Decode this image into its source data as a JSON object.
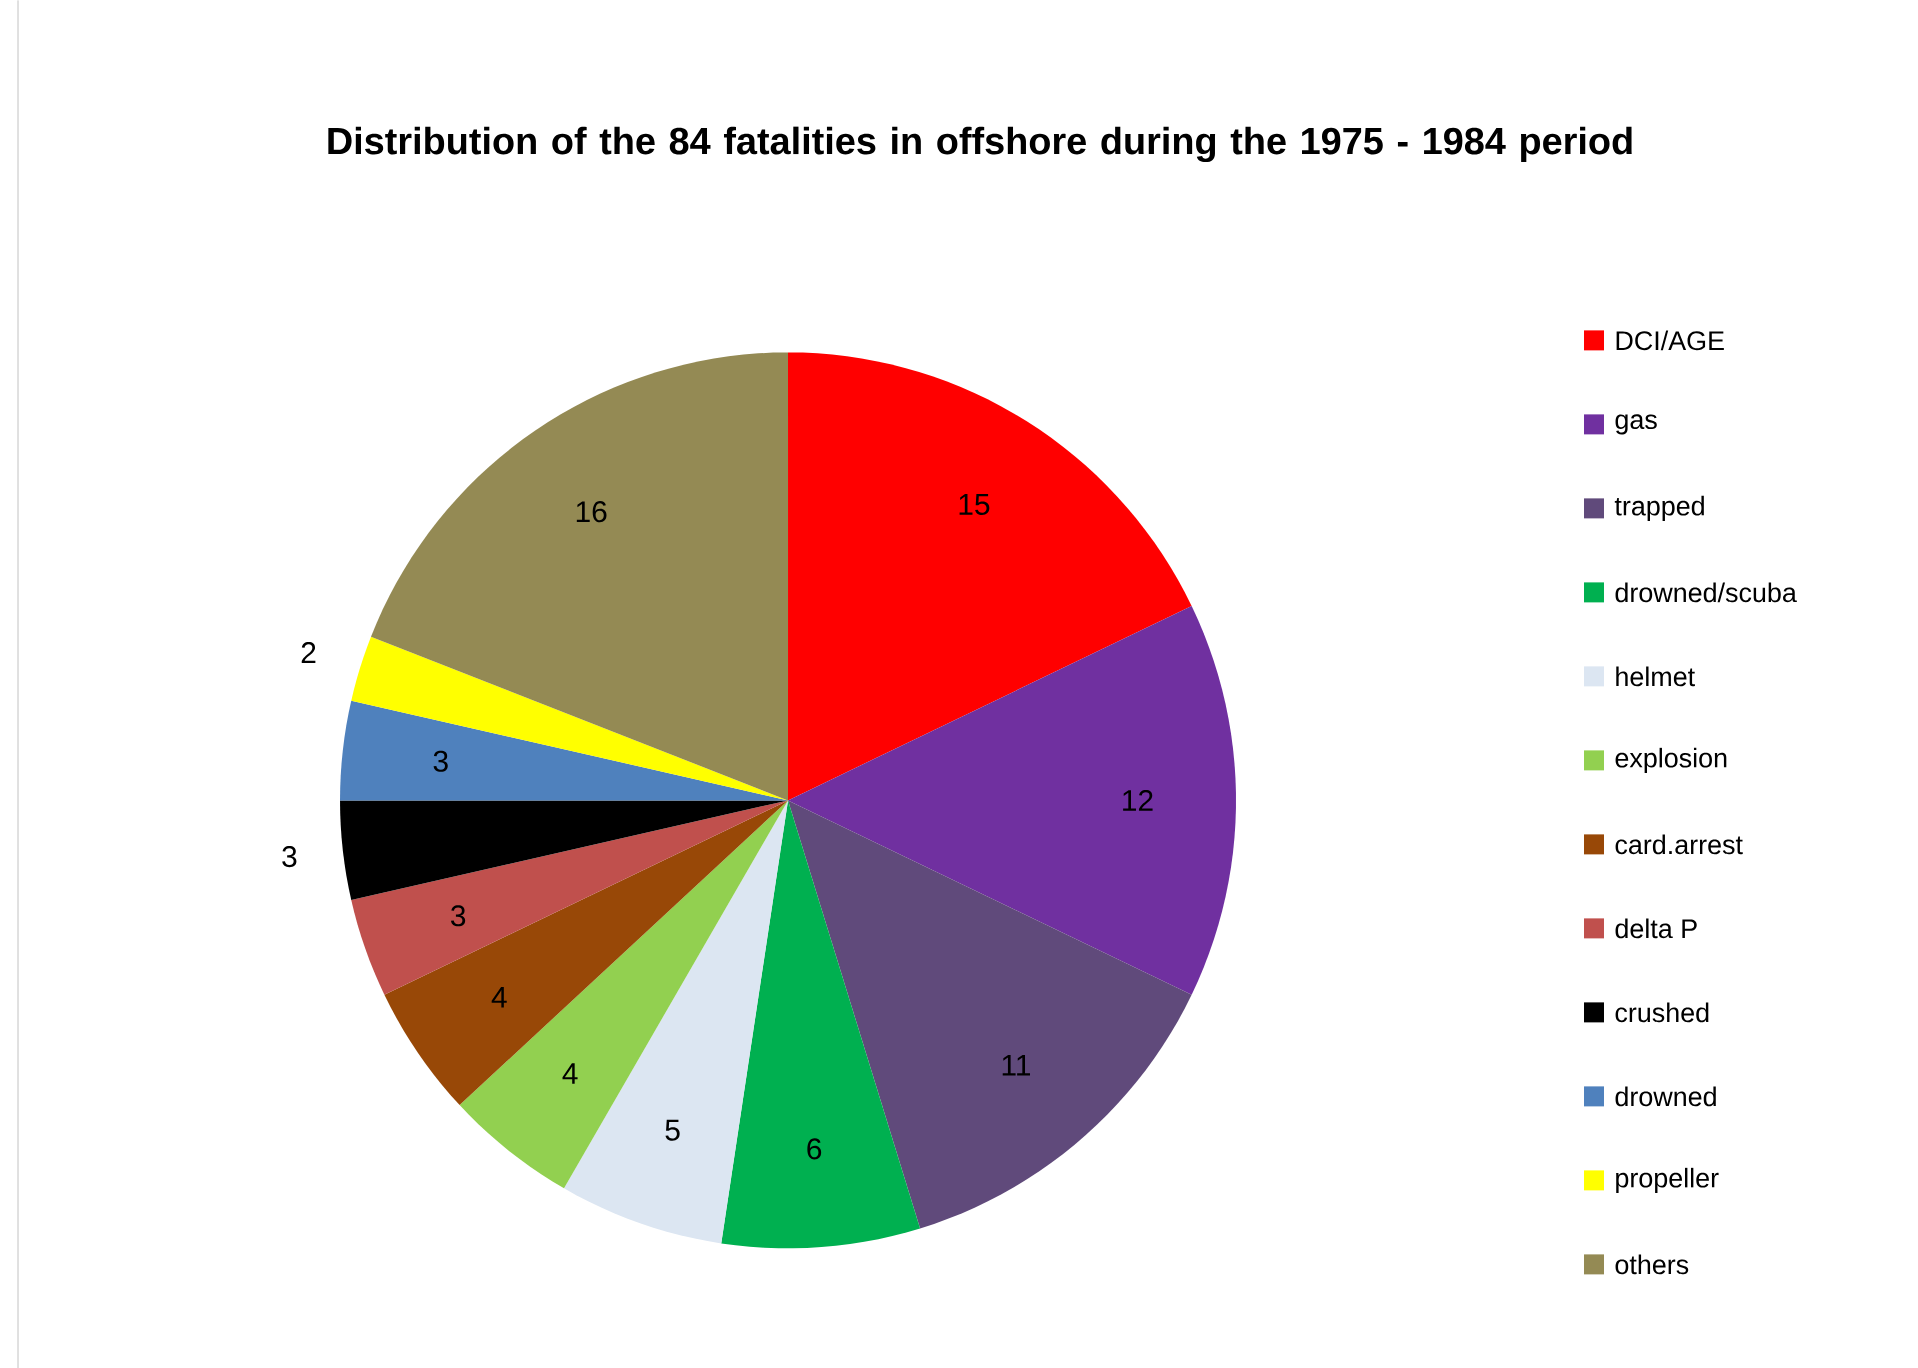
{
  "chart_data": {
    "type": "pie",
    "title": "Distribution of the 84 fatalities in offshore during the 1975 - 1984 period",
    "categories": [
      "DCI/AGE",
      "gas",
      "trapped",
      "drowned/scuba",
      "helmet",
      "explosion",
      "card.arrest",
      "delta P",
      "crushed",
      "drowned",
      "propeller",
      "others"
    ],
    "values": [
      15,
      12,
      11,
      6,
      5,
      4,
      4,
      3,
      3,
      3,
      2,
      16
    ],
    "colors": [
      "#ff0000",
      "#7030a0",
      "#604a7b",
      "#00b050",
      "#dce6f2",
      "#92d050",
      "#984807",
      "#c0504d",
      "#000000",
      "#4f81bd",
      "#ffff00",
      "#948a54"
    ],
    "data_labels": true,
    "legend": "right"
  }
}
